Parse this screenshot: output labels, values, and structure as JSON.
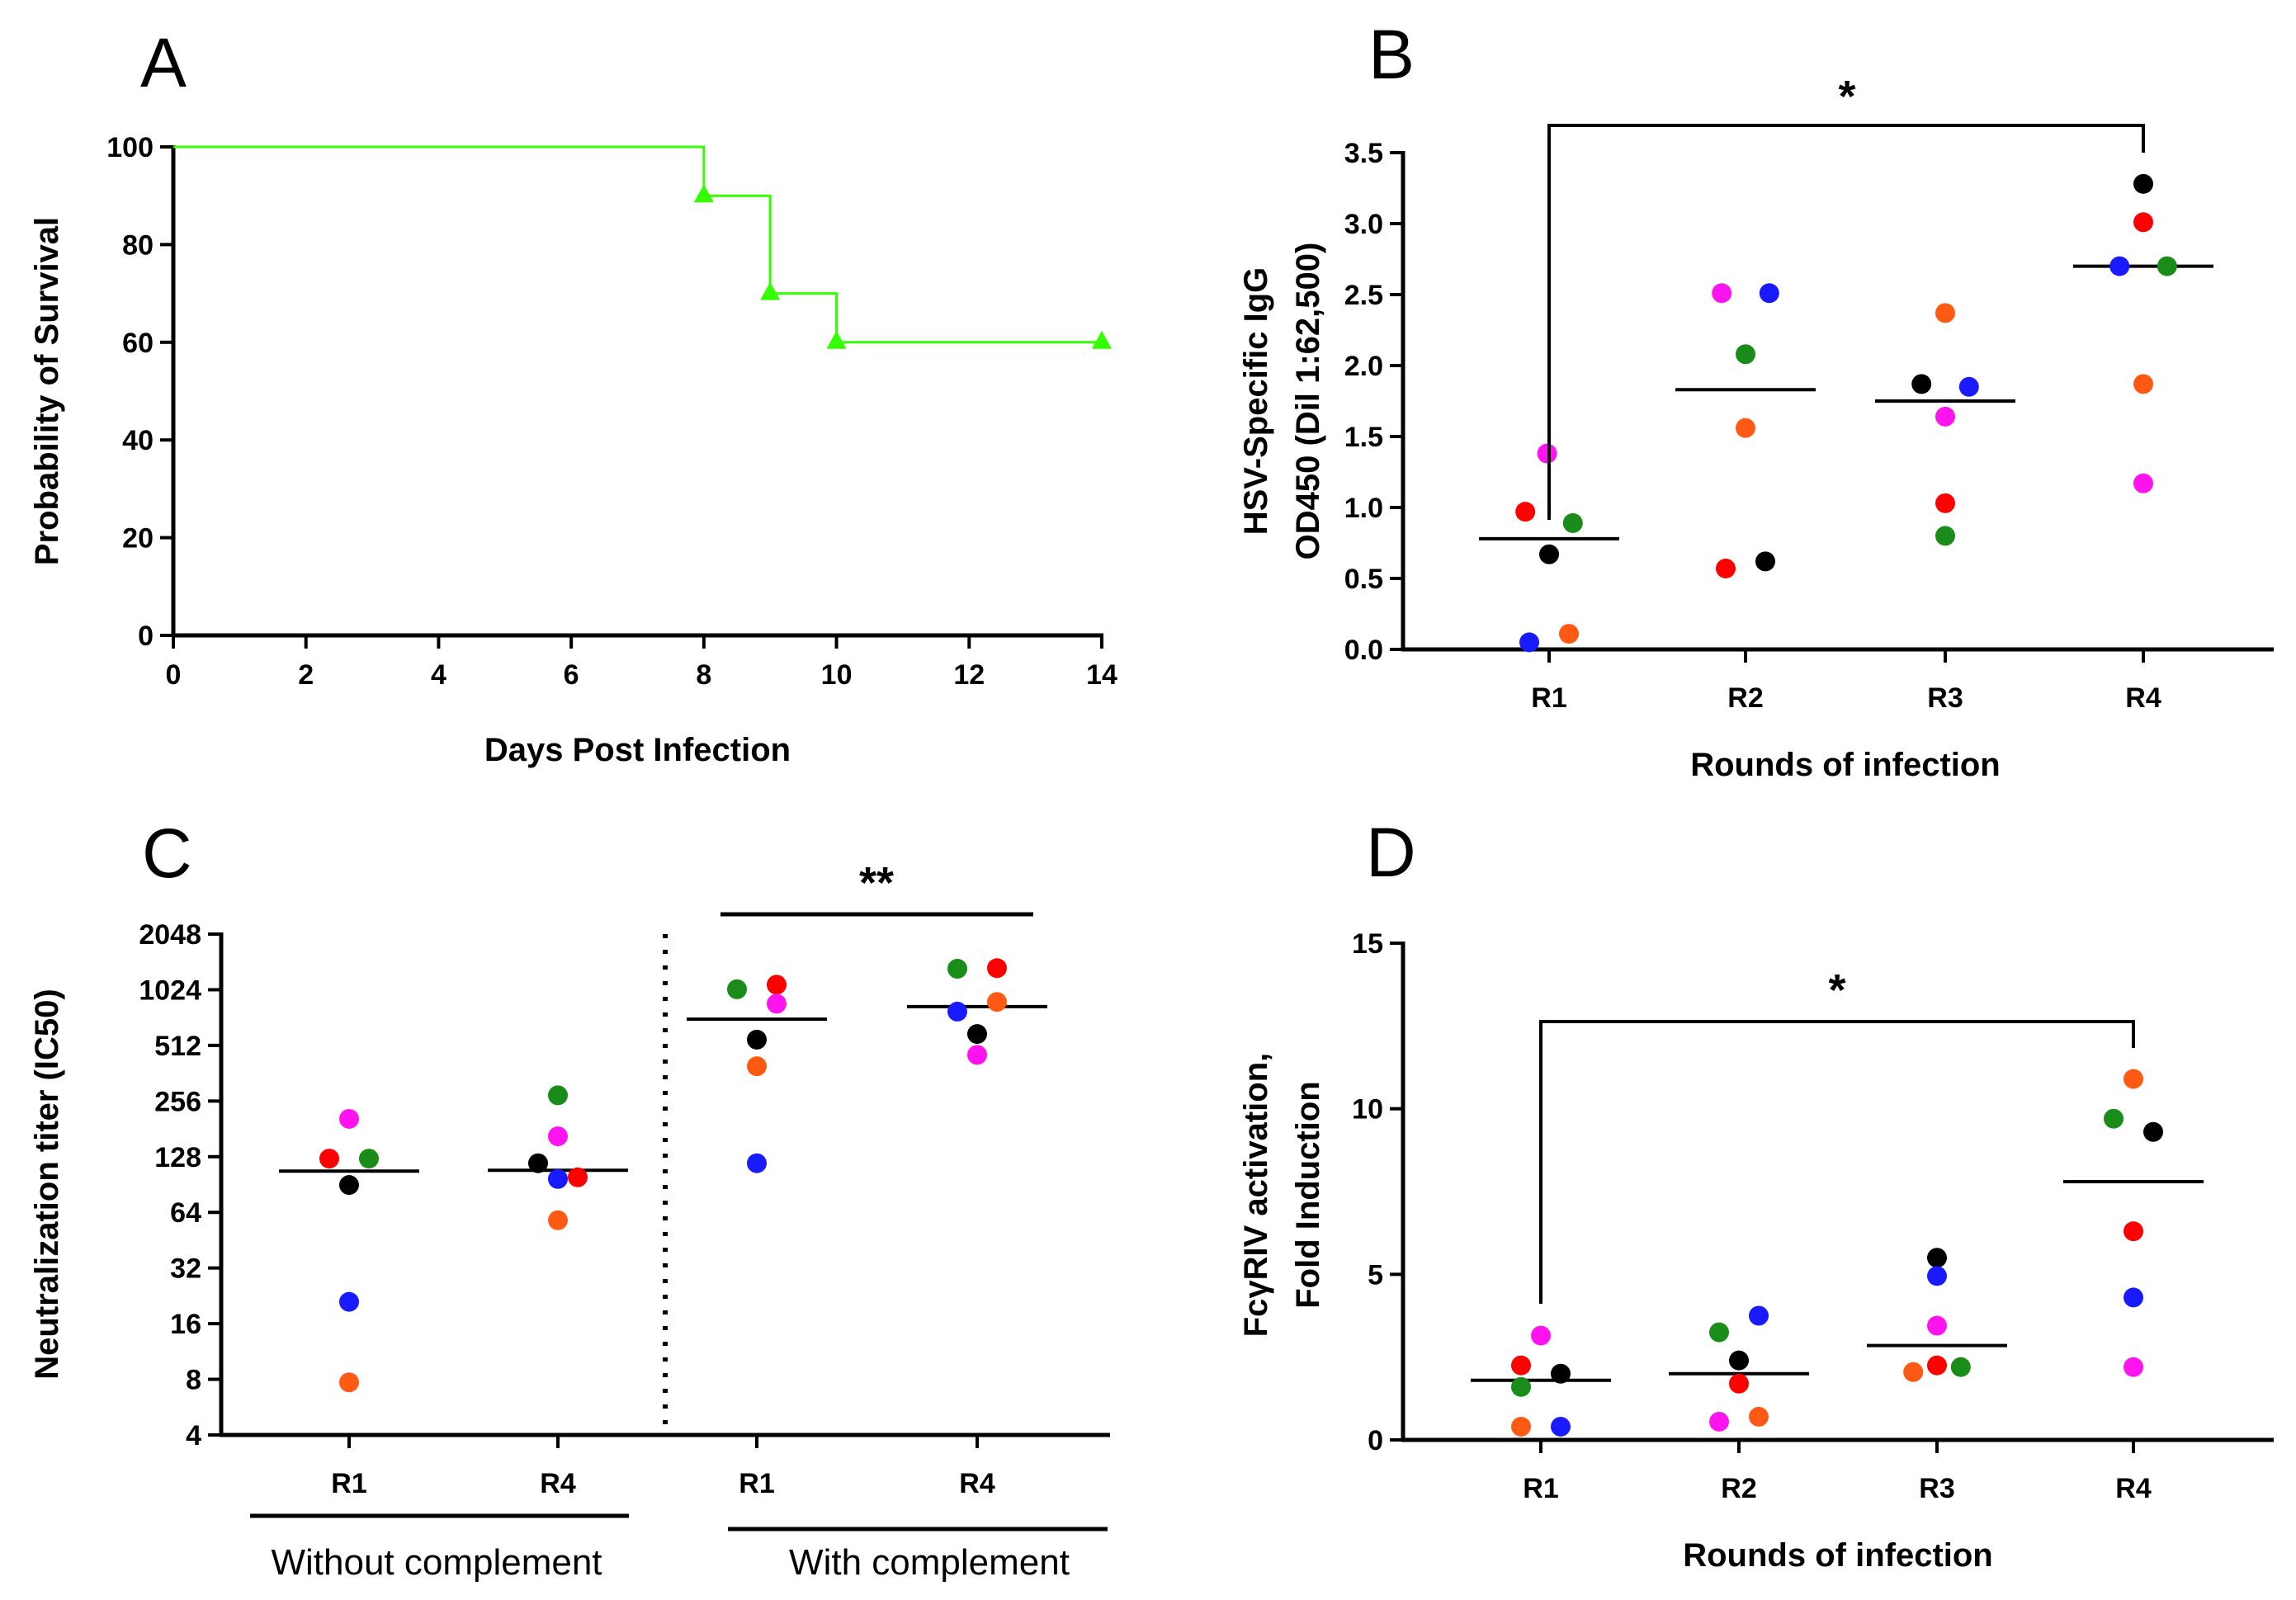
{
  "colors": {
    "survival": "#33ff00",
    "black": "#000000",
    "red": "#ff0000",
    "green": "#1a8c1a",
    "blue": "#1a1aff",
    "orange": "#ff5a14",
    "magenta": "#ff14f0"
  },
  "chart_data": [
    {
      "panel": "A",
      "type": "line",
      "subtype": "kaplan-meier",
      "xlabel": "Days Post Infection",
      "ylabel": "Probability of Survival",
      "xlim": [
        0,
        14
      ],
      "ylim": [
        0,
        100
      ],
      "xticks": [
        "0",
        "2",
        "4",
        "6",
        "8",
        "10",
        "12",
        "14"
      ],
      "yticks": [
        "0",
        "20",
        "40",
        "60",
        "80",
        "100"
      ],
      "series": [
        {
          "name": "survival",
          "color": "#33ff00",
          "steps": [
            {
              "x": 0,
              "y": 100
            },
            {
              "x": 8,
              "y": 90
            },
            {
              "x": 9,
              "y": 70
            },
            {
              "x": 10,
              "y": 60
            },
            {
              "x": 14,
              "y": 60
            }
          ],
          "markers": [
            {
              "x": 8,
              "y": 90
            },
            {
              "x": 9,
              "y": 70
            },
            {
              "x": 10,
              "y": 60
            },
            {
              "x": 14,
              "y": 60
            }
          ]
        }
      ]
    },
    {
      "panel": "B",
      "type": "scatter",
      "xlabel": "Rounds of infection",
      "ylabel": [
        "HSV-Specific IgG",
        "OD450 (Dil 1:62,500)"
      ],
      "ylim": [
        0,
        3.5
      ],
      "yticks": [
        "0.0",
        "0.5",
        "1.0",
        "1.5",
        "2.0",
        "2.5",
        "3.0",
        "3.5"
      ],
      "categories": [
        "R1",
        "R2",
        "R3",
        "R4"
      ],
      "groups": [
        {
          "category": "R1",
          "mean": 0.78,
          "points": [
            {
              "color": "magenta",
              "y": 1.38,
              "dx": -0.01
            },
            {
              "color": "red",
              "y": 0.97,
              "dx": -0.12
            },
            {
              "color": "green",
              "y": 0.89,
              "dx": 0.12
            },
            {
              "color": "black",
              "y": 0.67,
              "dx": 0.0
            },
            {
              "color": "blue",
              "y": 0.05,
              "dx": -0.1
            },
            {
              "color": "orange",
              "y": 0.11,
              "dx": 0.1
            }
          ]
        },
        {
          "category": "R2",
          "mean": 1.83,
          "points": [
            {
              "color": "magenta",
              "y": 2.51,
              "dx": -0.12
            },
            {
              "color": "blue",
              "y": 2.51,
              "dx": 0.12
            },
            {
              "color": "green",
              "y": 2.08,
              "dx": 0.0
            },
            {
              "color": "orange",
              "y": 1.56,
              "dx": 0.0
            },
            {
              "color": "red",
              "y": 0.57,
              "dx": -0.1
            },
            {
              "color": "black",
              "y": 0.62,
              "dx": 0.1
            }
          ]
        },
        {
          "category": "R3",
          "mean": 1.75,
          "points": [
            {
              "color": "orange",
              "y": 2.37,
              "dx": 0.0
            },
            {
              "color": "black",
              "y": 1.87,
              "dx": -0.12
            },
            {
              "color": "blue",
              "y": 1.85,
              "dx": 0.12
            },
            {
              "color": "magenta",
              "y": 1.64,
              "dx": 0.0
            },
            {
              "color": "red",
              "y": 1.03,
              "dx": 0.0
            },
            {
              "color": "green",
              "y": 0.8,
              "dx": 0.0
            }
          ]
        },
        {
          "category": "R4",
          "mean": 2.7,
          "points": [
            {
              "color": "black",
              "y": 3.28,
              "dx": 0.0
            },
            {
              "color": "red",
              "y": 3.01,
              "dx": 0.0
            },
            {
              "color": "blue",
              "y": 2.7,
              "dx": -0.12
            },
            {
              "color": "green",
              "y": 2.7,
              "dx": 0.12
            },
            {
              "color": "orange",
              "y": 1.87,
              "dx": 0.0
            },
            {
              "color": "magenta",
              "y": 1.17,
              "dx": 0.0
            }
          ]
        }
      ],
      "significance": {
        "from": "R1",
        "to": "R4",
        "label": "*"
      }
    },
    {
      "panel": "C",
      "type": "scatter",
      "ylabel": "Neutralization titer (IC50)",
      "yscale": "log2",
      "ylim": [
        4,
        2048
      ],
      "yticks": [
        "4",
        "8",
        "16",
        "32",
        "64",
        "128",
        "256",
        "512",
        "1024",
        "2048"
      ],
      "categories": [
        "R1",
        "R4",
        "R1",
        "R4"
      ],
      "group_labels": [
        "Without complement",
        "With complement"
      ],
      "groups": [
        {
          "category": "R1",
          "mean": 107,
          "points": [
            {
              "color": "magenta",
              "y": 205,
              "dx": 0.0
            },
            {
              "color": "red",
              "y": 125,
              "dx": -0.1
            },
            {
              "color": "green",
              "y": 125,
              "dx": 0.1
            },
            {
              "color": "black",
              "y": 90,
              "dx": 0.0
            },
            {
              "color": "blue",
              "y": 21,
              "dx": 0.0
            },
            {
              "color": "orange",
              "y": 7.7,
              "dx": 0.0
            }
          ]
        },
        {
          "category": "R4",
          "mean": 108,
          "points": [
            {
              "color": "green",
              "y": 275,
              "dx": 0.0
            },
            {
              "color": "magenta",
              "y": 165,
              "dx": 0.0
            },
            {
              "color": "black",
              "y": 118,
              "dx": -0.1
            },
            {
              "color": "blue",
              "y": 97,
              "dx": 0.0
            },
            {
              "color": "red",
              "y": 99,
              "dx": 0.1
            },
            {
              "color": "orange",
              "y": 58,
              "dx": 0.0
            }
          ]
        },
        {
          "category": "R1",
          "mean": 710,
          "points": [
            {
              "color": "green",
              "y": 1030,
              "dx": -0.1
            },
            {
              "color": "red",
              "y": 1090,
              "dx": 0.1
            },
            {
              "color": "magenta",
              "y": 860,
              "dx": 0.1
            },
            {
              "color": "black",
              "y": 550,
              "dx": 0.0
            },
            {
              "color": "orange",
              "y": 395,
              "dx": 0.0
            },
            {
              "color": "blue",
              "y": 118,
              "dx": 0.0
            }
          ]
        },
        {
          "category": "R4",
          "mean": 830,
          "points": [
            {
              "color": "green",
              "y": 1330,
              "dx": -0.1
            },
            {
              "color": "red",
              "y": 1340,
              "dx": 0.1
            },
            {
              "color": "orange",
              "y": 880,
              "dx": 0.1
            },
            {
              "color": "blue",
              "y": 780,
              "dx": -0.1
            },
            {
              "color": "black",
              "y": 590,
              "dx": 0.0
            },
            {
              "color": "magenta",
              "y": 455,
              "dx": 0.0
            }
          ]
        }
      ],
      "significance": {
        "label": "**"
      }
    },
    {
      "panel": "D",
      "type": "scatter",
      "xlabel": "Rounds of infection",
      "ylabel": [
        "FcγRIV activation,",
        "Fold Induction"
      ],
      "ylim": [
        0,
        15
      ],
      "yticks": [
        "0",
        "5",
        "10",
        "15"
      ],
      "categories": [
        "R1",
        "R2",
        "R3",
        "R4"
      ],
      "groups": [
        {
          "category": "R1",
          "mean": 1.8,
          "points": [
            {
              "color": "magenta",
              "y": 3.15,
              "dx": 0.0
            },
            {
              "color": "red",
              "y": 2.25,
              "dx": -0.1
            },
            {
              "color": "black",
              "y": 2.0,
              "dx": 0.1
            },
            {
              "color": "green",
              "y": 1.6,
              "dx": -0.1
            },
            {
              "color": "orange",
              "y": 0.4,
              "dx": -0.1
            },
            {
              "color": "blue",
              "y": 0.4,
              "dx": 0.1
            }
          ]
        },
        {
          "category": "R2",
          "mean": 2.0,
          "points": [
            {
              "color": "blue",
              "y": 3.75,
              "dx": 0.1
            },
            {
              "color": "green",
              "y": 3.25,
              "dx": -0.1
            },
            {
              "color": "black",
              "y": 2.4,
              "dx": 0.0
            },
            {
              "color": "red",
              "y": 1.7,
              "dx": 0.0
            },
            {
              "color": "magenta",
              "y": 0.55,
              "dx": -0.1
            },
            {
              "color": "orange",
              "y": 0.7,
              "dx": 0.1
            }
          ]
        },
        {
          "category": "R3",
          "mean": 2.85,
          "points": [
            {
              "color": "black",
              "y": 5.5,
              "dx": 0.0
            },
            {
              "color": "blue",
              "y": 4.95,
              "dx": 0.0
            },
            {
              "color": "magenta",
              "y": 3.45,
              "dx": 0.0
            },
            {
              "color": "orange",
              "y": 2.05,
              "dx": -0.12
            },
            {
              "color": "red",
              "y": 2.25,
              "dx": 0.0
            },
            {
              "color": "green",
              "y": 2.2,
              "dx": 0.12
            }
          ]
        },
        {
          "category": "R4",
          "mean": 7.8,
          "points": [
            {
              "color": "orange",
              "y": 10.9,
              "dx": 0.0
            },
            {
              "color": "green",
              "y": 9.7,
              "dx": -0.1
            },
            {
              "color": "black",
              "y": 9.3,
              "dx": 0.1
            },
            {
              "color": "red",
              "y": 6.3,
              "dx": 0.0
            },
            {
              "color": "blue",
              "y": 4.3,
              "dx": 0.0
            },
            {
              "color": "magenta",
              "y": 2.2,
              "dx": 0.0
            }
          ]
        }
      ],
      "significance": {
        "from": "R1",
        "to": "R4",
        "label": "*"
      }
    }
  ]
}
